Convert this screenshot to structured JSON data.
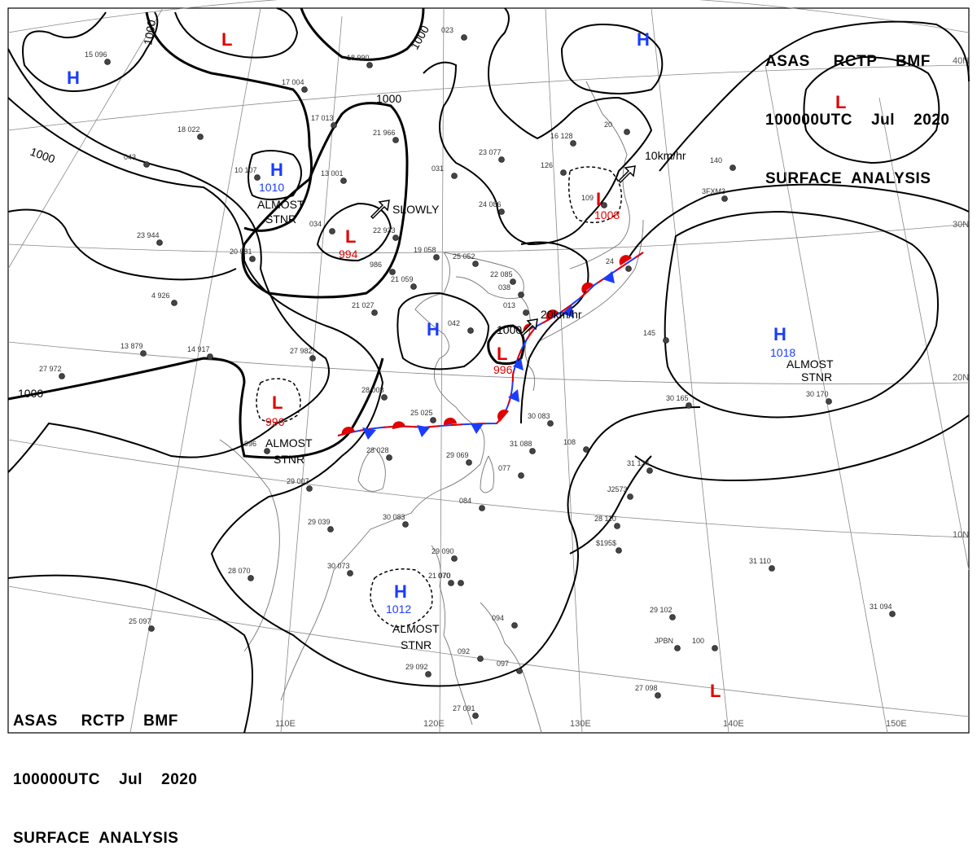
{
  "header_top": {
    "line1": "ASAS     RCTP    BMF",
    "line2": "100000UTC    Jul    2020",
    "line3": "SURFACE  ANALYSIS"
  },
  "header_bottom": {
    "line1": "ASAS     RCTP    BMF",
    "line2": "100000UTC    Jul    2020",
    "line3": "SURFACE  ANALYSIS"
  },
  "grid_labels": {
    "lon_110": "110E",
    "lon_120": "120E",
    "lon_130": "130E",
    "lon_140": "140E",
    "lon_150": "150E",
    "lat_40": "40N",
    "lat_30": "30N",
    "lat_20": "20N",
    "lat_10": "10N"
  },
  "isobar_labels": {
    "a": "1000",
    "b": "1000",
    "c": "1000",
    "d": "1000",
    "e": "1000",
    "f": "1000"
  },
  "systems": {
    "h_northwest": {
      "symbol": "H"
    },
    "l_north": {
      "symbol": "L"
    },
    "h_siberia": {
      "symbol": "H",
      "pressure": "1010",
      "note_1": "ALMOST",
      "note_2": "STNR"
    },
    "l_mongolia": {
      "symbol": "L",
      "pressure": "994",
      "motion": "SLOWLY"
    },
    "h_manchuria": {
      "symbol": "H"
    },
    "l_japansea": {
      "symbol": "L",
      "pressure": "1008",
      "motion": "10km/hr"
    },
    "h_kamchatka": {
      "symbol": "H"
    },
    "l_northeast": {
      "symbol": "L"
    },
    "h_yellowsea": {
      "symbol": "H"
    },
    "l_eastchina": {
      "symbol": "L",
      "pressure": "996",
      "motion": "20km/hr"
    },
    "l_tibet": {
      "symbol": "L",
      "pressure": "996",
      "note_1": "ALMOST",
      "note_2": "STNR"
    },
    "h_pacific": {
      "symbol": "H",
      "pressure": "1018",
      "note_1": "ALMOST",
      "note_2": "STNR"
    },
    "h_scs": {
      "symbol": "H",
      "pressure": "1012",
      "note_1": "ALMOST",
      "note_2": "STNR"
    },
    "l_southeast": {
      "symbol": "L"
    }
  },
  "station_text": {
    "s1": "15  096",
    "s2": "18  990",
    "s3": "17  004",
    "s4": "17  013",
    "s5": "21  966",
    "s6": "18  022",
    "s7": "043",
    "s8": "10  107",
    "s9": "13  001",
    "s10": "034",
    "s11": "23  944",
    "s12": "20  981",
    "s13": "22  933",
    "s14": "19  058",
    "s15": "25  052",
    "s16": "986",
    "s17": "21  059",
    "s18": "4  926",
    "s19": "21  027",
    "s20": "042",
    "s21": "13  879",
    "s22": "14  917",
    "s23": "27  982",
    "s24": "27  972",
    "s25": "28  008",
    "s26": "25  025",
    "s27": "996",
    "s28": "28  028",
    "s29": "29  069",
    "s30": "29  007",
    "s31": "29  039",
    "s32": "30  083",
    "s33": "084",
    "s34": "28  070",
    "s35": "30  073",
    "s36": "29  090",
    "s37": "070",
    "s38": "25  097",
    "s39": "29  092",
    "s40": "092",
    "s41": "094",
    "s42": "097",
    "s43": "27  091",
    "s44": "023",
    "s45": "23  077",
    "s46": "031",
    "s47": "24  086",
    "s48": "22  085",
    "s49": "038",
    "s50": "013",
    "s51": "16  128",
    "s52": "126",
    "s53": "109",
    "s54": "20",
    "s55": "140",
    "s56": "3FXM3",
    "s57": "24",
    "s58": "145",
    "s59": "30  165",
    "s60": "30  170",
    "s61": "30  083",
    "s62": "31  088",
    "s63": "108",
    "s64": "31  134",
    "s65": "J2573",
    "s66": "28  110",
    "s67": "$195$",
    "s68": "31  110",
    "s69": "29  102",
    "s70": "JPBN",
    "s71": "100",
    "s72": "31  094",
    "s73": "27  098",
    "s74": "077",
    "s75": "21  070"
  }
}
